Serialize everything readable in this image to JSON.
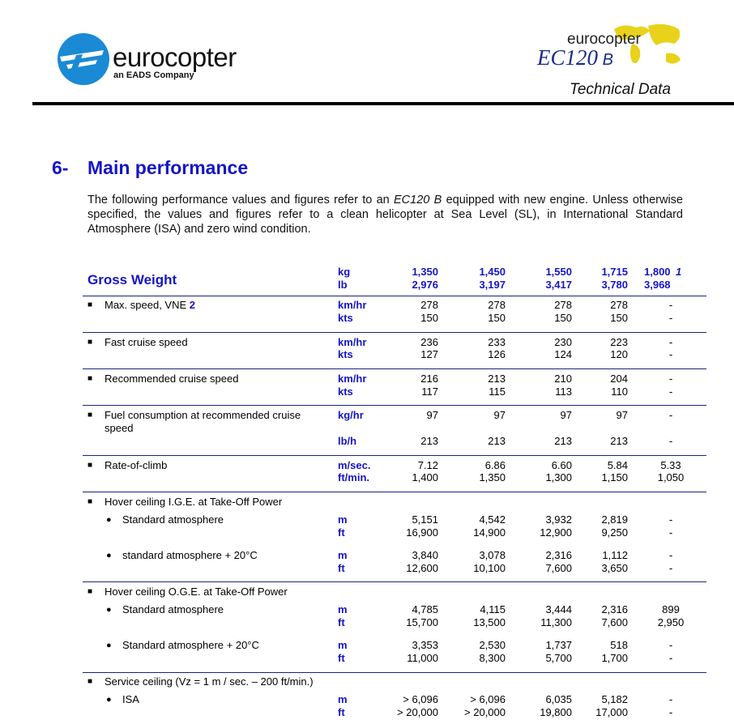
{
  "header": {
    "logo_text": "eurocopter",
    "logo_sub": "an EADS Company",
    "brand": "eurocopter",
    "model": "EC120",
    "model_suffix": "B",
    "doc_title": "Technical Data"
  },
  "section": {
    "number": "6-",
    "title": "Main performance"
  },
  "intro": [
    "The following performance values and figures refer to an ",
    "EC120 B",
    " equipped with new engine. Unless otherwise specified, the values and figures refer to a clean helicopter at Sea Level (SL), in International Standard Atmosphere (ISA) and zero wind condition."
  ],
  "table": {
    "header": {
      "label": "Gross Weight",
      "units": [
        "kg",
        "lb"
      ],
      "columns": [
        {
          "kg": "1,350",
          "lb": "2,976"
        },
        {
          "kg": "1,450",
          "lb": "3,197"
        },
        {
          "kg": "1,550",
          "lb": "3,417"
        },
        {
          "kg": "1,715",
          "lb": "3,780"
        },
        {
          "kg": "1,800",
          "lb": "3,968",
          "note": "1"
        }
      ]
    },
    "groups": [
      {
        "label": "Max. speed, VNE",
        "note": "2",
        "rows": [
          {
            "unit": "km/hr",
            "values": [
              "278",
              "278",
              "278",
              "278",
              "-"
            ]
          },
          {
            "unit": "kts",
            "values": [
              "150",
              "150",
              "150",
              "150",
              "-"
            ]
          }
        ]
      },
      {
        "label": "Fast cruise speed",
        "rows": [
          {
            "unit": "km/hr",
            "values": [
              "236",
              "233",
              "230",
              "223",
              "-"
            ]
          },
          {
            "unit": "kts",
            "values": [
              "127",
              "126",
              "124",
              "120",
              "-"
            ]
          }
        ]
      },
      {
        "label": "Recommended cruise speed",
        "rows": [
          {
            "unit": "km/hr",
            "values": [
              "216",
              "213",
              "210",
              "204",
              "-"
            ]
          },
          {
            "unit": "kts",
            "values": [
              "117",
              "115",
              "113",
              "110",
              "-"
            ]
          }
        ]
      },
      {
        "label": "Fuel consumption at recommended cruise speed",
        "rows": [
          {
            "unit": "kg/hr",
            "values": [
              "97",
              "97",
              "97",
              "97",
              "-"
            ]
          },
          {
            "unit": "lb/h",
            "values": [
              "213",
              "213",
              "213",
              "213",
              "-"
            ]
          }
        ]
      },
      {
        "label": "Rate-of-climb",
        "rows": [
          {
            "unit": "m/sec.",
            "values": [
              "7.12",
              "6.86",
              "6.60",
              "5.84",
              "5.33"
            ]
          },
          {
            "unit": "ft/min.",
            "values": [
              "1,400",
              "1,350",
              "1,300",
              "1,150",
              "1,050"
            ]
          }
        ]
      },
      {
        "label": "Hover ceiling I.G.E. at Take-Off Power",
        "items": [
          {
            "label": "Standard atmosphere",
            "rows": [
              {
                "unit": "m",
                "values": [
                  "5,151",
                  "4,542",
                  "3,932",
                  "2,819",
                  "-"
                ]
              },
              {
                "unit": "ft",
                "values": [
                  "16,900",
                  "14,900",
                  "12,900",
                  "9,250",
                  "-"
                ]
              }
            ]
          },
          {
            "label": "standard atmosphere + 20°C",
            "rows": [
              {
                "unit": "m",
                "values": [
                  "3,840",
                  "3,078",
                  "2,316",
                  "1,112",
                  "-"
                ]
              },
              {
                "unit": "ft",
                "values": [
                  "12,600",
                  "10,100",
                  "7,600",
                  "3,650",
                  "-"
                ]
              }
            ]
          }
        ]
      },
      {
        "label": "Hover ceiling O.G.E. at Take-Off Power",
        "items": [
          {
            "label": "Standard atmosphere",
            "rows": [
              {
                "unit": "m",
                "values": [
                  "4,785",
                  "4,115",
                  "3,444",
                  "2,316",
                  "899"
                ]
              },
              {
                "unit": "ft",
                "values": [
                  "15,700",
                  "13,500",
                  "11,300",
                  "7,600",
                  "2,950"
                ]
              }
            ]
          },
          {
            "label": "Standard atmosphere + 20°C",
            "rows": [
              {
                "unit": "m",
                "values": [
                  "3,353",
                  "2,530",
                  "1,737",
                  "518",
                  "-"
                ]
              },
              {
                "unit": "ft",
                "values": [
                  "11,000",
                  "8,300",
                  "5,700",
                  "1,700",
                  "-"
                ]
              }
            ]
          }
        ]
      },
      {
        "label": "Service ceiling (Vz = 1 m / sec. – 200 ft/min.)",
        "items": [
          {
            "label": "ISA",
            "rows": [
              {
                "unit": "m",
                "values": [
                  "> 6,096",
                  "> 6,096",
                  "6,035",
                  "5,182",
                  "-"
                ]
              },
              {
                "unit": "ft",
                "values": [
                  "> 20,000",
                  "> 20,000",
                  "19,800",
                  "17,000",
                  "-"
                ]
              }
            ]
          }
        ]
      }
    ]
  }
}
